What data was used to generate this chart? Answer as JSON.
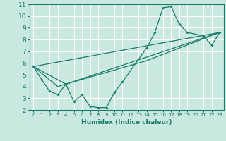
{
  "title": "",
  "xlabel": "Humidex (Indice chaleur)",
  "bg_color": "#c8e8e0",
  "grid_color": "#ffffff",
  "line_color": "#1a7a6a",
  "xlim": [
    -0.5,
    23.5
  ],
  "ylim": [
    2,
    11
  ],
  "xticks": [
    0,
    1,
    2,
    3,
    4,
    5,
    6,
    7,
    8,
    9,
    10,
    11,
    12,
    13,
    14,
    15,
    16,
    17,
    18,
    19,
    20,
    21,
    22,
    23
  ],
  "yticks": [
    2,
    3,
    4,
    5,
    6,
    7,
    8,
    9,
    10,
    11
  ],
  "line1_x": [
    0,
    1,
    2,
    3,
    4,
    5,
    6,
    7,
    8,
    9,
    10,
    11,
    14,
    15,
    16,
    17,
    18,
    19,
    21,
    22,
    23
  ],
  "line1_y": [
    5.7,
    4.6,
    3.6,
    3.3,
    4.2,
    2.7,
    3.3,
    2.3,
    2.2,
    2.2,
    3.5,
    4.4,
    7.3,
    8.6,
    10.7,
    10.8,
    9.3,
    8.6,
    8.3,
    7.5,
    8.6
  ],
  "line2_x": [
    0,
    4,
    14,
    23
  ],
  "line2_y": [
    5.7,
    4.2,
    6.5,
    8.6
  ],
  "line3_x": [
    0,
    3,
    14,
    23
  ],
  "line3_y": [
    5.7,
    4.0,
    6.2,
    8.6
  ],
  "line4_x": [
    0,
    23
  ],
  "line4_y": [
    5.7,
    8.6
  ]
}
